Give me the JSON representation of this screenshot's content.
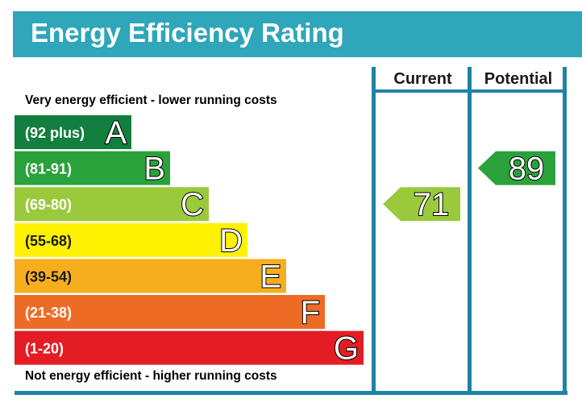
{
  "title": "Energy Efficiency Rating",
  "colors": {
    "frame": "#2182a8",
    "header_bar": "#2fa6b9",
    "band_text": "#ffffff",
    "letter_outline": "#000000"
  },
  "chart_data": {
    "type": "bar",
    "title": "Energy Efficiency Rating",
    "top_caption": "Very energy efficient - lower running costs",
    "bottom_caption": "Not energy efficient - higher running costs",
    "bands": [
      {
        "range": "(92 plus)",
        "letter": "A",
        "color": "#137f3e"
      },
      {
        "range": "(81-91)",
        "letter": "B",
        "color": "#2aa23b"
      },
      {
        "range": "(69-80)",
        "letter": "C",
        "color": "#9aca3c"
      },
      {
        "range": "(55-68)",
        "letter": "D",
        "color": "#fff200"
      },
      {
        "range": "(39-54)",
        "letter": "E",
        "color": "#f6ae1f"
      },
      {
        "range": "(21-38)",
        "letter": "F",
        "color": "#ee6b25"
      },
      {
        "range": "(1-20)",
        "letter": "G",
        "color": "#e31d23"
      }
    ],
    "columns": [
      "Current",
      "Potential"
    ],
    "ratings": [
      {
        "column": "Current",
        "value": 71,
        "band": "C",
        "color": "#9aca3c"
      },
      {
        "column": "Potential",
        "value": 89,
        "band": "B",
        "color": "#2aa23b"
      }
    ]
  }
}
